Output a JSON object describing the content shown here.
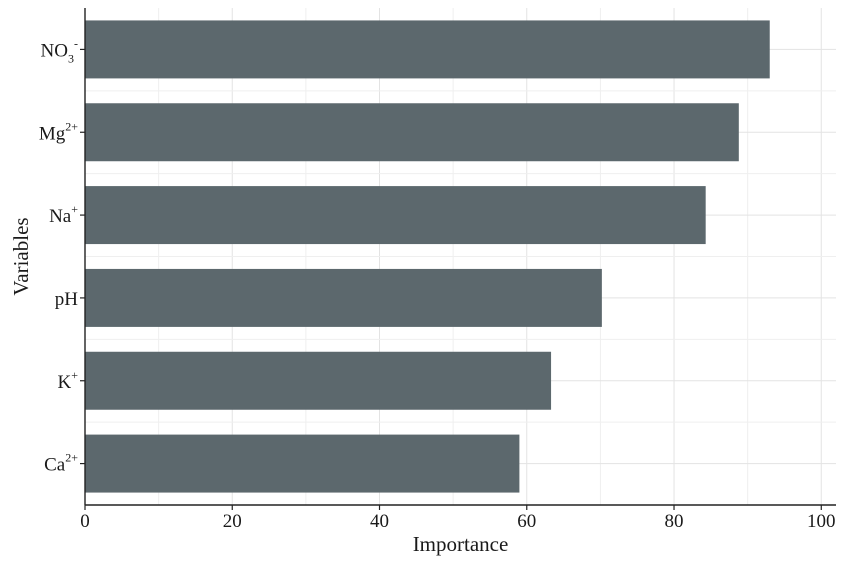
{
  "chart_data": {
    "type": "bar",
    "orientation": "horizontal",
    "xlabel": "Importance",
    "ylabel": "Variables",
    "xlim": [
      0,
      102
    ],
    "xticks": [
      0,
      20,
      40,
      60,
      80,
      100
    ],
    "grid": true,
    "bar_color": "#5c686d",
    "categories": [
      {
        "base": "NO",
        "sub": "3",
        "sup": "-"
      },
      {
        "base": "Mg",
        "sub": "",
        "sup": "2+"
      },
      {
        "base": "Na",
        "sub": "",
        "sup": "+"
      },
      {
        "base": "pH",
        "sub": "",
        "sup": ""
      },
      {
        "base": "K",
        "sub": "",
        "sup": "+"
      },
      {
        "base": "Ca",
        "sub": "",
        "sup": "2+"
      }
    ],
    "values": [
      93,
      88.8,
      84.3,
      70.2,
      63.3,
      59
    ]
  }
}
